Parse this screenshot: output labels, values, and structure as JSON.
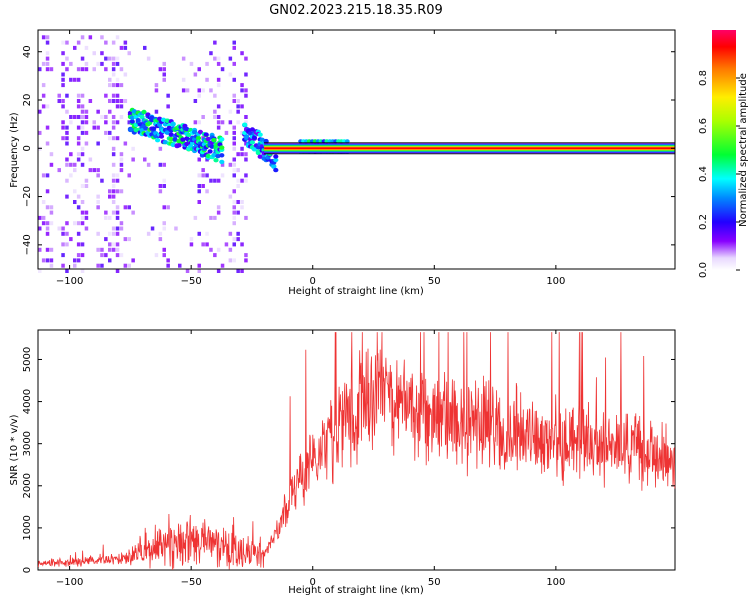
{
  "title": "GN02.2023.215.18.35.R09",
  "chart_data": [
    {
      "type": "heatmap",
      "xlabel": "Height of straight line (km)",
      "ylabel": "Frequency (Hz)",
      "xlim": [
        -113,
        149
      ],
      "ylim": [
        -50,
        49
      ],
      "xticks": [
        -100,
        -50,
        0,
        50,
        100
      ],
      "yticks": [
        -40,
        -20,
        0,
        20,
        40
      ],
      "colorbar": {
        "label": "Normalized spectral amplitude",
        "range": [
          0,
          1
        ],
        "ticks": [
          0.0,
          0.2,
          0.4,
          0.6,
          0.8
        ],
        "colormap": "gist_rainbow (white at 0, violet → blue → cyan → green → yellow → red → magenta)"
      },
      "features": [
        {
          "name": "noise",
          "x_range": [
            -113,
            -27
          ],
          "freq_range": [
            -50,
            49
          ],
          "amplitude": 0.1
        },
        {
          "name": "strong band",
          "x_range": [
            -75,
            -37
          ],
          "freq_start": 12,
          "freq_end": -1,
          "amplitude": 0.35
        },
        {
          "name": "strong band",
          "x_range": [
            -28,
            -15
          ],
          "freq_start": 7,
          "freq_end": -5,
          "amplitude": 0.3
        },
        {
          "name": "carrier",
          "x_range": [
            -20,
            149
          ],
          "freq": 0,
          "amplitude": 1.0
        },
        {
          "name": "carrier sidebands",
          "x_range": [
            -5,
            15
          ],
          "freq": 1.5,
          "amplitude": 0.35
        }
      ],
      "grid": false
    },
    {
      "type": "line",
      "xlabel": "Height of straight line (km)",
      "ylabel": "SNR (10 * v/v)",
      "xlim": [
        -113,
        149
      ],
      "ylim": [
        0,
        5700
      ],
      "xticks": [
        -100,
        -50,
        0,
        50,
        100
      ],
      "yticks": [
        0,
        1000,
        2000,
        3000,
        4000,
        5000
      ],
      "color": "#ee3333",
      "series": [
        {
          "x": [
            -113,
            -100,
            -90,
            -80,
            -75,
            -70,
            -60,
            -50,
            -40,
            -30,
            -25,
            -20,
            -17,
            -15,
            -12,
            -10,
            -5,
            0,
            5,
            10,
            15,
            20,
            25,
            28,
            30,
            35,
            40,
            45,
            50,
            60,
            70,
            80,
            90,
            100,
            110,
            120,
            130,
            140,
            149
          ],
          "values": [
            150,
            180,
            220,
            250,
            300,
            500,
            600,
            700,
            550,
            450,
            400,
            350,
            700,
            900,
            1300,
            1600,
            2200,
            2600,
            3000,
            3300,
            3600,
            4000,
            4200,
            4400,
            4350,
            4000,
            3800,
            3700,
            3600,
            3500,
            3450,
            3300,
            3200,
            3100,
            3000,
            2900,
            2800,
            2700,
            2600
          ]
        }
      ],
      "grid": false
    }
  ]
}
